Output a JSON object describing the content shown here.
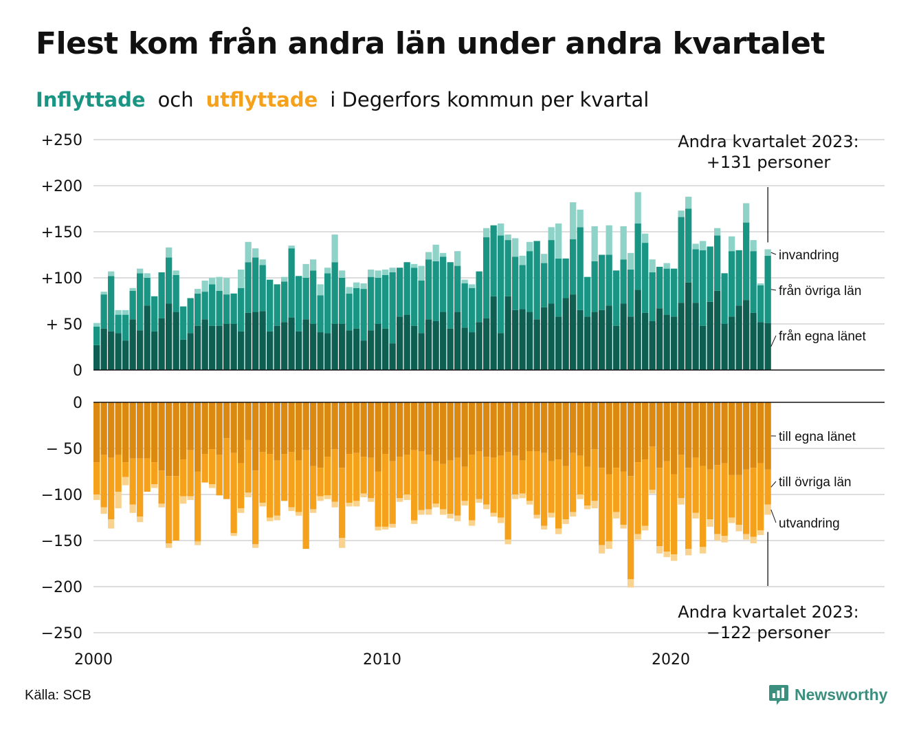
{
  "title": "Flest kom från andra län under andra kvartalet",
  "subtitle": {
    "inflyttade": "Inflyttade",
    "och": "och",
    "utflyttade": "utflyttade",
    "rest": "i Degerfors kommun per kvartal"
  },
  "source": "Källa: SCB",
  "logo_text": "Newsworthy",
  "colors": {
    "in_own": "#0f5e52",
    "in_other": "#1a9583",
    "in_immigration": "#8fd3c8",
    "out_own": "#dc8911",
    "out_other": "#f5a11c",
    "out_emigration": "#f9d28e",
    "grid": "#dddddd"
  },
  "annotations": {
    "top_line1": "Andra kvartalet 2023:",
    "top_line2": "+131 personer",
    "bottom_line1": "Andra kvartalet 2023:",
    "bottom_line2": "−122 personer"
  },
  "chart_data": {
    "type": "bar",
    "stacked": true,
    "x_start": "2000 Q1",
    "x_end": "2023 Q2",
    "x_ticks": [
      "2000",
      "2010",
      "2020"
    ],
    "y_ticks_top": [
      "+250",
      "+200",
      "+150",
      "+100",
      "+ 50",
      "0"
    ],
    "y_ticks_bottom": [
      "0",
      "− 50",
      "−100",
      "−150",
      "−200",
      "−250"
    ],
    "ylim_top": [
      0,
      250
    ],
    "ylim_bottom": [
      -250,
      0
    ],
    "grid": true,
    "series_in": [
      {
        "name": "från egna länet",
        "values": [
          27,
          45,
          42,
          40,
          32,
          55,
          43,
          70,
          42,
          56,
          72,
          63,
          33,
          40,
          48,
          55,
          48,
          48,
          50,
          50,
          42,
          62,
          63,
          64,
          42,
          48,
          52,
          57,
          42,
          55,
          50,
          41,
          40,
          50,
          50,
          43,
          45,
          32,
          43,
          50,
          45,
          29,
          58,
          60,
          48,
          40,
          55,
          53,
          63,
          45,
          63,
          46,
          41,
          52,
          56,
          80,
          40,
          80,
          65,
          66,
          63,
          55,
          68,
          72,
          58,
          78,
          82,
          65,
          58,
          63,
          65,
          70,
          48,
          72,
          58,
          87,
          62,
          53,
          67,
          60,
          58,
          73,
          95,
          73,
          48,
          74,
          86,
          50,
          58,
          70,
          76,
          62,
          52,
          51
        ]
      },
      {
        "name": "från övriga län",
        "values": [
          20,
          37,
          60,
          20,
          28,
          31,
          62,
          30,
          38,
          50,
          50,
          40,
          36,
          38,
          35,
          30,
          45,
          38,
          32,
          33,
          47,
          55,
          59,
          50,
          56,
          45,
          44,
          75,
          60,
          45,
          58,
          40,
          65,
          67,
          50,
          40,
          44,
          56,
          58,
          50,
          58,
          77,
          53,
          57,
          63,
          57,
          65,
          65,
          60,
          72,
          50,
          48,
          48,
          55,
          88,
          77,
          106,
          61,
          58,
          48,
          66,
          85,
          48,
          69,
          63,
          43,
          60,
          90,
          43,
          55,
          60,
          55,
          60,
          48,
          51,
          72,
          76,
          53,
          45,
          50,
          52,
          93,
          80,
          58,
          82,
          60,
          60,
          55,
          71,
          60,
          84,
          67,
          40,
          73
        ]
      },
      {
        "name": "invandring",
        "values": [
          4,
          3,
          5,
          5,
          5,
          3,
          5,
          5,
          0,
          0,
          11,
          5,
          0,
          0,
          5,
          12,
          7,
          15,
          18,
          0,
          20,
          22,
          10,
          6,
          0,
          0,
          5,
          3,
          0,
          15,
          12,
          12,
          6,
          30,
          8,
          7,
          6,
          6,
          8,
          8,
          6,
          5,
          0,
          0,
          4,
          16,
          8,
          18,
          4,
          0,
          16,
          4,
          4,
          0,
          10,
          0,
          13,
          6,
          20,
          10,
          10,
          0,
          10,
          14,
          38,
          0,
          40,
          19,
          0,
          38,
          0,
          32,
          0,
          36,
          18,
          34,
          10,
          14,
          0,
          6,
          0,
          7,
          13,
          6,
          10,
          0,
          8,
          0,
          16,
          0,
          21,
          12,
          2,
          7
        ]
      }
    ],
    "series_out": [
      {
        "name": "till egna länet",
        "values": [
          -65,
          -57,
          -60,
          -57,
          -65,
          -61,
          -61,
          -61,
          -65,
          -74,
          -80,
          -80,
          -62,
          -52,
          -75,
          -56,
          -51,
          -57,
          -39,
          -55,
          -66,
          -41,
          -74,
          -54,
          -56,
          -63,
          -56,
          -54,
          -63,
          -52,
          -69,
          -71,
          -59,
          -51,
          -71,
          -56,
          -55,
          -59,
          -60,
          -75,
          -56,
          -64,
          -59,
          -57,
          -52,
          -53,
          -57,
          -64,
          -67,
          -63,
          -60,
          -70,
          -57,
          -53,
          -59,
          -60,
          -58,
          -54,
          -58,
          -63,
          -53,
          -53,
          -55,
          -64,
          -62,
          -69,
          -55,
          -58,
          -70,
          -51,
          -71,
          -78,
          -71,
          -75,
          -80,
          -65,
          -62,
          -48,
          -71,
          -64,
          -78,
          -57,
          -71,
          -60,
          -69,
          -73,
          -68,
          -66,
          -79,
          -79,
          -73,
          -71,
          -66,
          -73
        ]
      },
      {
        "name": "till övriga län",
        "values": [
          -35,
          -57,
          -67,
          -40,
          -16,
          -50,
          -63,
          -36,
          -24,
          -36,
          -73,
          -70,
          -40,
          -50,
          -76,
          -31,
          -38,
          -44,
          -66,
          -87,
          -49,
          -57,
          -80,
          -55,
          -69,
          -60,
          -51,
          -60,
          -56,
          -107,
          -47,
          -31,
          -42,
          -57,
          -76,
          -53,
          -52,
          -40,
          -44,
          -60,
          -79,
          -68,
          -45,
          -43,
          -76,
          -64,
          -59,
          -46,
          -49,
          -58,
          -63,
          -37,
          -71,
          -52,
          -52,
          -60,
          -67,
          -95,
          -42,
          -36,
          -54,
          -69,
          -79,
          -56,
          -75,
          -58,
          -64,
          -42,
          -42,
          -56,
          -84,
          -73,
          -48,
          -58,
          -112,
          -78,
          -72,
          -47,
          -85,
          -98,
          -87,
          -47,
          -88,
          -60,
          -88,
          -54,
          -75,
          -79,
          -46,
          -54,
          -70,
          -75,
          -73,
          -38
        ]
      },
      {
        "name": "utvandring",
        "values": [
          -6,
          -7,
          -10,
          -18,
          -9,
          -9,
          -6,
          0,
          -4,
          -4,
          -5,
          0,
          -8,
          -4,
          -4,
          0,
          -4,
          0,
          0,
          -3,
          -5,
          -5,
          -4,
          -4,
          -4,
          -5,
          0,
          -4,
          -4,
          0,
          -4,
          -5,
          -4,
          -6,
          -11,
          -4,
          -6,
          -4,
          -4,
          -4,
          -3,
          -4,
          -4,
          -6,
          -4,
          -5,
          -6,
          -4,
          -6,
          -5,
          -6,
          -5,
          -6,
          -4,
          -5,
          -4,
          -6,
          -5,
          -5,
          -5,
          -4,
          -4,
          -4,
          -5,
          -6,
          -5,
          -5,
          -5,
          -4,
          -8,
          -9,
          -8,
          -7,
          -4,
          -9,
          -6,
          -5,
          -4,
          -8,
          -6,
          -7,
          -7,
          -7,
          -6,
          -7,
          -8,
          -7,
          -7,
          -6,
          -7,
          -6,
          -7,
          -5,
          -11
        ]
      }
    ],
    "series_labels_in": [
      "invandring",
      "från övriga län",
      "från egna länet"
    ],
    "series_labels_out": [
      "till egna länet",
      "till övriga län",
      "utvandring"
    ]
  }
}
